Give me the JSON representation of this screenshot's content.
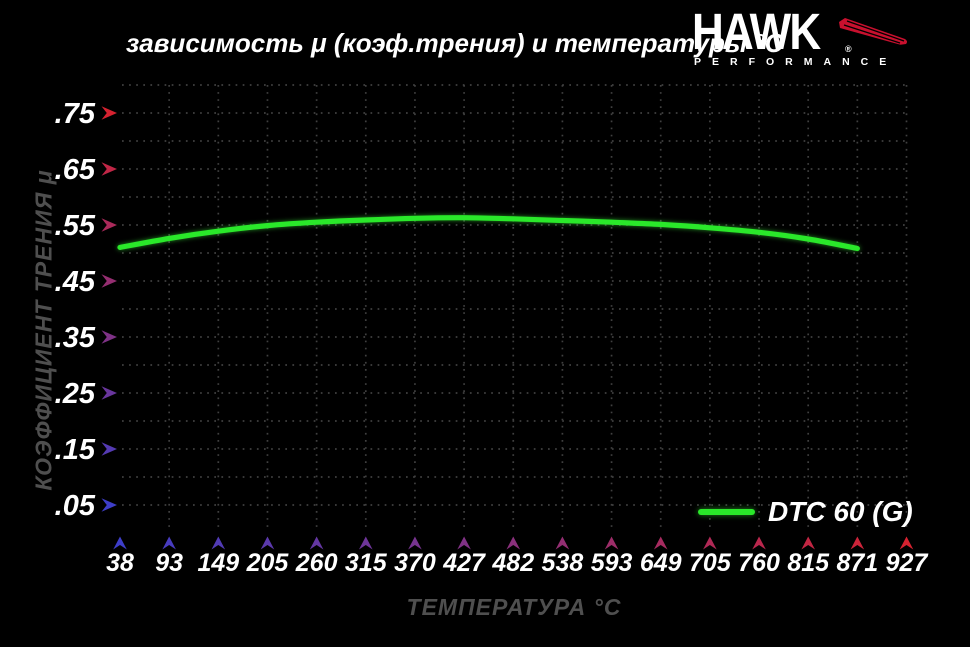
{
  "title": "зависимость μ (коэф.трения) и температуры °C",
  "logo": {
    "brand": "HAWK",
    "sub": "PERFORMANCE",
    "registered": "®"
  },
  "legend": {
    "label": "DTC 60 (G)"
  },
  "chart_data": {
    "type": "line",
    "title": "зависимость μ (коэф.трения) и температуры °C",
    "xlabel": "ТЕМПЕРАТУРА °C",
    "ylabel": "КОЭФФИЦИЕНТ ТРЕНИЯ μ",
    "x_ticks": [
      38,
      93,
      149,
      205,
      260,
      315,
      370,
      427,
      482,
      538,
      593,
      649,
      705,
      760,
      815,
      871,
      927
    ],
    "y_tick_values": [
      0.05,
      0.15,
      0.25,
      0.35,
      0.45,
      0.55,
      0.65,
      0.75
    ],
    "y_tick_labels": [
      ".05",
      ".15",
      ".25",
      ".35",
      ".45",
      ".55",
      ".65",
      ".75"
    ],
    "ylim": [
      0,
      0.8
    ],
    "grid": "dotted",
    "legend_position": "bottom-right",
    "series": [
      {
        "name": "DTC 60 (G)",
        "color": "#2ae82a",
        "x": [
          38,
          93,
          149,
          205,
          260,
          315,
          370,
          427,
          482,
          538,
          593,
          649,
          705,
          760,
          815,
          871
        ],
        "values": [
          0.51,
          0.526,
          0.539,
          0.549,
          0.555,
          0.559,
          0.562,
          0.563,
          0.561,
          0.558,
          0.555,
          0.551,
          0.545,
          0.537,
          0.525,
          0.508
        ]
      }
    ],
    "colors": {
      "background": "#000000",
      "text": "#ffffff",
      "axis_label_gray": "#4f4f4f",
      "grid": "#404040",
      "axis_cold_blue": "#3e3ec8",
      "axis_hot_red": "#c41428",
      "arrow_hot_red": "#d62230",
      "series_green": "#2ae82a",
      "hawk_red": "#c8102e"
    }
  }
}
